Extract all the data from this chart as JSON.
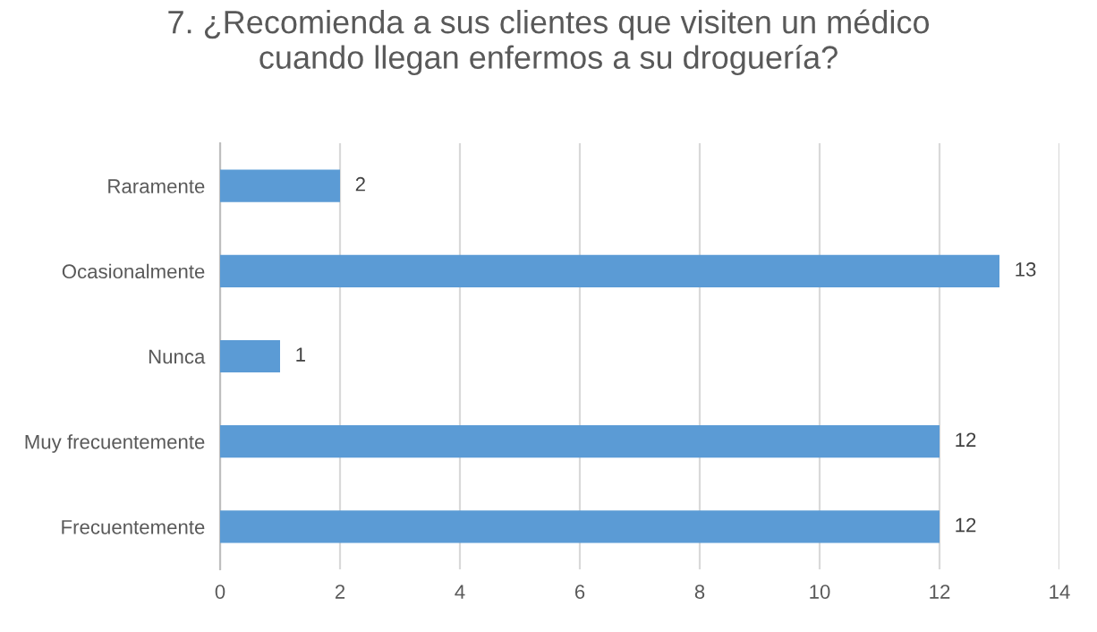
{
  "chart_data": {
    "type": "bar",
    "orientation": "horizontal",
    "title": "7. ¿Recomienda a sus clientes que visiten un médico\ncuando llegan enfermos a su droguería?",
    "categories": [
      "Raramente",
      "Ocasionalmente",
      "Nunca",
      "Muy frecuentemente",
      "Frecuentemente"
    ],
    "values": [
      2,
      13,
      1,
      12,
      12
    ],
    "color": "#5b9bd5",
    "xlim": [
      0,
      14
    ],
    "xticks": [
      0,
      2,
      4,
      6,
      8,
      10,
      12,
      14
    ],
    "grid": "x",
    "data_labels": true
  }
}
